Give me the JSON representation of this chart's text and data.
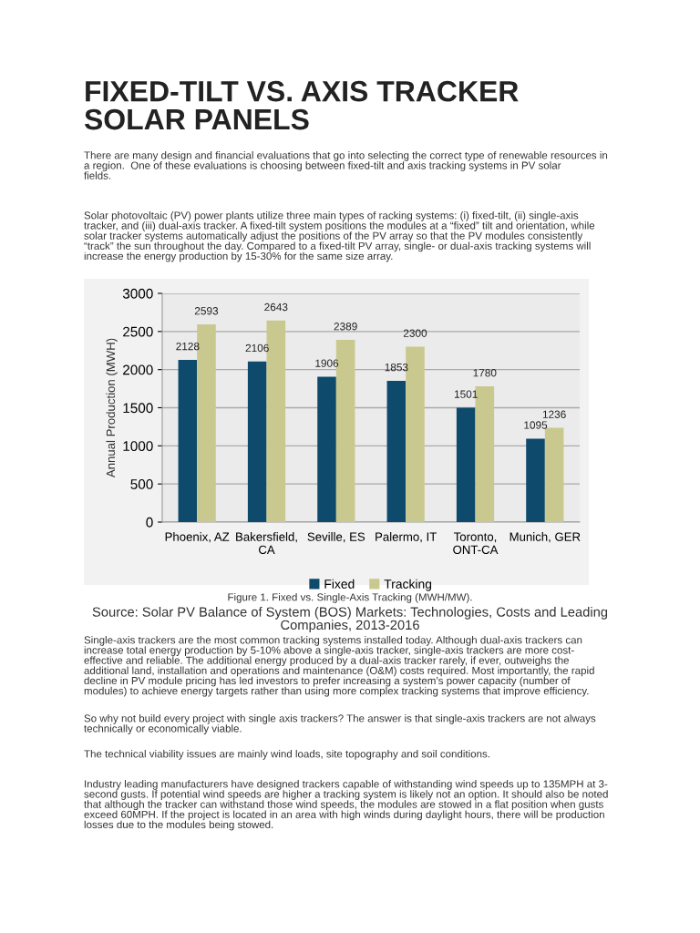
{
  "chart_data": {
    "type": "bar",
    "title": "FIXED-TILT VS. AXIS TRACKER\nSOLAR PANELS",
    "ylabel": "Annual Production (MWH)",
    "categories": [
      "Phoenix, AZ",
      "Bakersfield,\nCA",
      "Seville, ES",
      "Palermo, IT",
      "Toronto,\nONT-CA",
      "Munich, GER"
    ],
    "series": [
      {
        "name": "Fixed",
        "color": "#0e4a6b",
        "values": [
          2128,
          2106,
          1906,
          1853,
          1501,
          1095
        ]
      },
      {
        "name": "Tracking",
        "color": "#c9c98f",
        "values": [
          2593,
          2643,
          2389,
          2300,
          1780,
          1236
        ]
      }
    ],
    "ylim": [
      0,
      3000
    ],
    "yticks": [
      0,
      500,
      1000,
      1500,
      2000,
      2500,
      3000
    ],
    "grid": "y",
    "legend": "bottom",
    "data_labels": true,
    "annotations": [
      "There are many design and financial evaluations that go into selecting the correct type of renewable resources in\na region.  One of these evaluations is choosing between fixed-tilt and axis tracking systems in PV solar\nfields.",
      "Solar photovoltaic (PV) power plants utilize three main types of racking systems: (i) fixed-tilt, (ii) single-axis\ntracker, and (iii) dual-axis tracker. A fixed-tilt system positions the modules at a “fixed” tilt and orientation, while\nsolar tracker systems automatically adjust the positions of the PV array so that the PV modules consistently\n“track” the sun throughout the day. Compared to a fixed-tilt PV array, single- or dual-axis tracking systems will\nincrease the energy production by 15-30% for the same size array.",
      "Figure 1. Fixed vs. Single-Axis Tracking (MWH/MW).",
      "Source: Solar PV Balance of System (BOS) Markets: Technologies, Costs and Leading\nCompanies, 2013-2016",
      "Single-axis trackers are the most common tracking systems installed today. Although dual-axis trackers can\nincrease total energy production by 5-10% above a single-axis tracker, single-axis trackers are more cost-\neffective and reliable. The additional energy produced by a dual-axis tracker rarely, if ever, outweighs the\nadditional land, installation and operations and maintenance (O&M) costs required. Most importantly, the rapid\ndecline in PV module pricing has led investors to prefer increasing a system’s power capacity (number of\nmodules) to achieve energy targets rather than using more complex tracking systems that improve efficiency.",
      "So why not build every project with single axis trackers? The answer is that single-axis trackers are not always\ntechnically or economically viable.",
      "The technical viability issues are mainly wind loads, site topography and soil conditions.",
      "Industry leading manufacturers have designed trackers capable of withstanding wind speeds up to 135MPH at 3-\nsecond gusts. If potential wind speeds are higher a tracking system is likely not an option. It should also be noted\nthat although the tracker can withstand those wind speeds, the modules are stowed in a flat position when gusts\nexceed 60MPH. If the project is located in an area with high winds during daylight hours, there will be production\nlosses due to the modules being stowed."
    ]
  }
}
